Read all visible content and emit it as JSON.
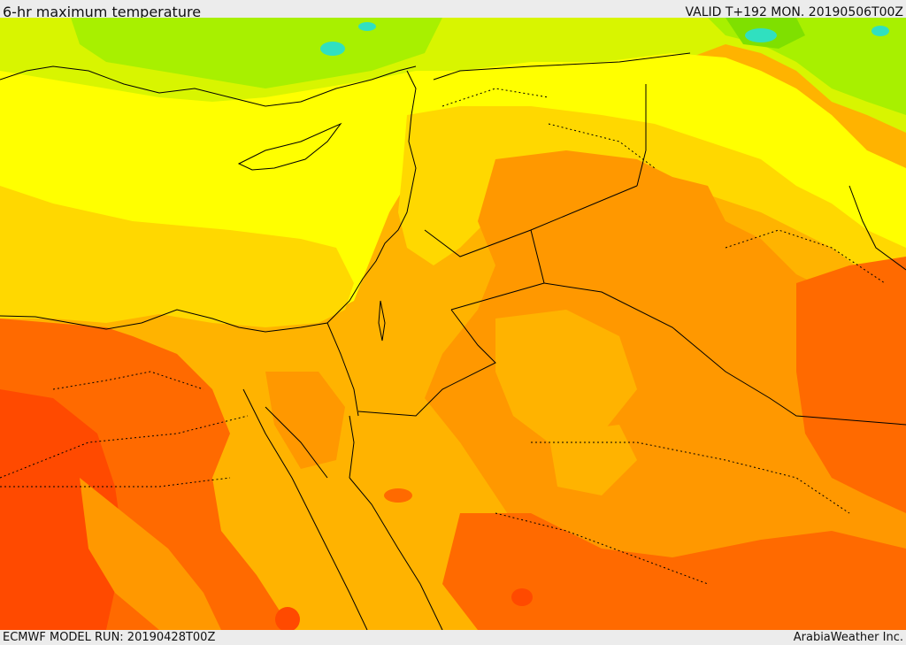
{
  "header": {
    "title": "6-hr maximum temperature",
    "valid_time": "VALID T+192 MON. 20190506T00Z"
  },
  "footer": {
    "model_run": "ECMWF MODEL RUN: 20190428T00Z",
    "credit": "ArabiaWeather Inc."
  },
  "map": {
    "palette": {
      "cool_green": "#7fe000",
      "green": "#a8f000",
      "lime": "#d8f500",
      "yellow": "#ffff00",
      "gold": "#ffd800",
      "light_orange": "#ffb300",
      "orange": "#ff9800",
      "dark_orange": "#ff6a00",
      "red_orange": "#ff4a00",
      "cyan": "#30e0c0",
      "border": "#000000"
    }
  }
}
